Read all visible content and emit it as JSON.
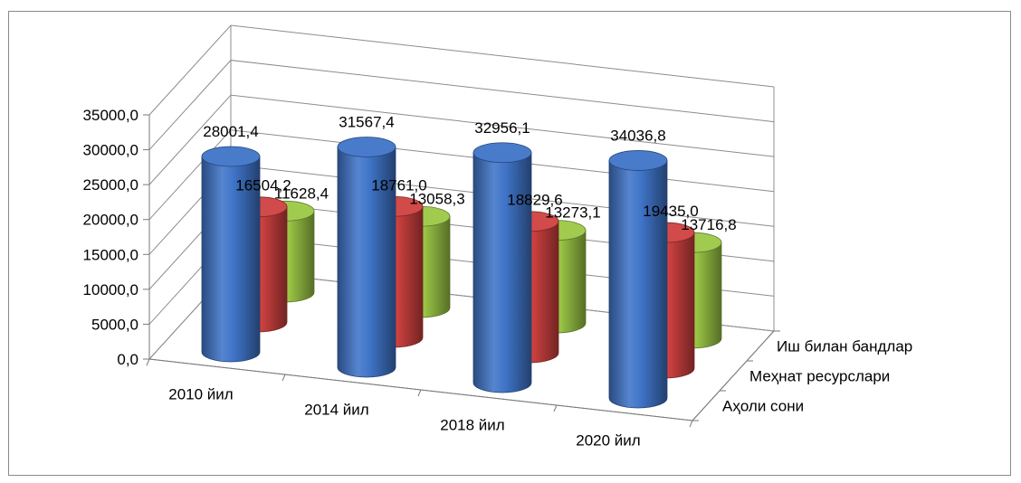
{
  "chart_data": {
    "type": "bar",
    "style": "3d-cylinder",
    "categories": [
      "2010 йил",
      "2014 йил",
      "2018 йил",
      "2020 йил"
    ],
    "series": [
      {
        "name": "Аҳоли сони",
        "values": [
          28001.4,
          31567.4,
          32956.1,
          34036.8
        ],
        "labels": [
          "28001,4",
          "31567,4",
          "32956,1",
          "34036,8"
        ],
        "color": "#3f74c8"
      },
      {
        "name": "Меҳнат ресурслари",
        "values": [
          16504.2,
          18761.0,
          18829.6,
          19435.0
        ],
        "labels": [
          "16504,2",
          "18761,0",
          "18829,6",
          "19435,0"
        ],
        "color": "#cf4140"
      },
      {
        "name": "Иш билан бандлар",
        "values": [
          11628.4,
          13058.3,
          13273.1,
          13716.8
        ],
        "labels": [
          "11628,4",
          "13058,3",
          "13273,1",
          "13716,8"
        ],
        "color": "#9cc846"
      }
    ],
    "ylim": [
      0,
      35000
    ],
    "yticks": [
      "0,0",
      "5000,0",
      "10000,0",
      "15000,0",
      "20000,0",
      "25000,0",
      "30000,0",
      "35000,0"
    ],
    "grid": true,
    "legend": "depth-axis-right"
  }
}
